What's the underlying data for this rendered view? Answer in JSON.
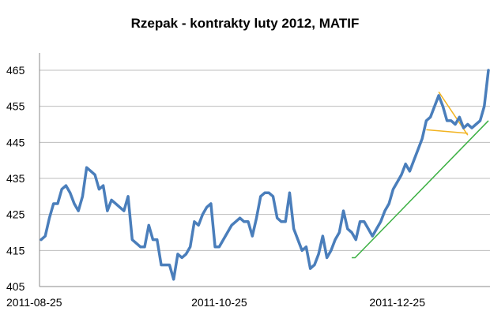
{
  "chart_data": {
    "type": "line",
    "title": "Rzepak - kontrakty luty 2012, MATIF",
    "xlabel": "",
    "ylabel": "",
    "ylim": [
      405,
      465
    ],
    "yticks": [
      405,
      415,
      425,
      435,
      445,
      455,
      465
    ],
    "xticks": [
      {
        "x": 0,
        "label": "2011-08-25"
      },
      {
        "x": 43,
        "label": "2011-10-25"
      },
      {
        "x": 86,
        "label": "2011-12-25"
      }
    ],
    "grid": true,
    "legend": "none",
    "series": [
      {
        "color": "#4a7ebb",
        "x": [
          0,
          1,
          2,
          3,
          4,
          5,
          6,
          7,
          8,
          9,
          10,
          11,
          12,
          13,
          14,
          15,
          16,
          17,
          18,
          19,
          20,
          21,
          22,
          23,
          24,
          25,
          26,
          27,
          28,
          29,
          30,
          31,
          32,
          33,
          34,
          35,
          36,
          37,
          38,
          39,
          40,
          41,
          42,
          43,
          44,
          45,
          46,
          47,
          48,
          49,
          50,
          51,
          52,
          53,
          54,
          55,
          56,
          57,
          58,
          59,
          60,
          61,
          62,
          63,
          64,
          65,
          66,
          67,
          68,
          69,
          70,
          71,
          72,
          73,
          74,
          75,
          76,
          77,
          78,
          79,
          80,
          81,
          82,
          83,
          84,
          85,
          86,
          87,
          88,
          89,
          90,
          91,
          92,
          93,
          94,
          95,
          96,
          97,
          98,
          99,
          100,
          101,
          102,
          103,
          104,
          105,
          106,
          107,
          108
        ],
        "y": [
          418,
          419,
          424,
          428,
          428,
          432,
          433,
          431,
          428,
          426,
          430,
          438,
          437,
          436,
          432,
          433,
          426,
          429,
          428,
          427,
          426,
          430,
          418,
          417,
          416,
          416,
          422,
          418,
          418,
          411,
          411,
          411,
          407,
          414,
          413,
          414,
          416,
          423,
          422,
          425,
          427,
          428,
          416,
          416,
          418,
          420,
          422,
          423,
          424,
          423,
          423,
          419,
          424,
          430,
          431,
          431,
          430,
          424,
          423,
          423,
          431,
          421,
          418,
          415,
          416,
          410,
          411,
          414,
          419,
          413,
          415,
          418,
          420,
          426,
          421,
          420,
          418,
          423,
          423,
          421,
          419,
          421,
          423,
          426,
          428,
          432,
          434,
          436,
          439,
          437,
          440,
          443,
          446,
          451,
          452,
          455,
          458,
          455,
          451,
          451,
          450,
          452,
          449,
          450,
          449,
          450,
          451,
          455,
          465
        ]
      }
    ],
    "annotations": [
      {
        "type": "trendline",
        "color": "#3cb043",
        "points": [
          [
            75,
            413
          ],
          [
            75.8,
            413
          ],
          [
            108,
            451
          ]
        ]
      },
      {
        "type": "trendline",
        "color": "#f2b320",
        "points": [
          [
            96,
            459
          ],
          [
            103,
            447
          ]
        ]
      },
      {
        "type": "trendline",
        "color": "#f2b320",
        "points": [
          [
            93,
            448.5
          ],
          [
            103,
            447.5
          ]
        ]
      }
    ]
  }
}
